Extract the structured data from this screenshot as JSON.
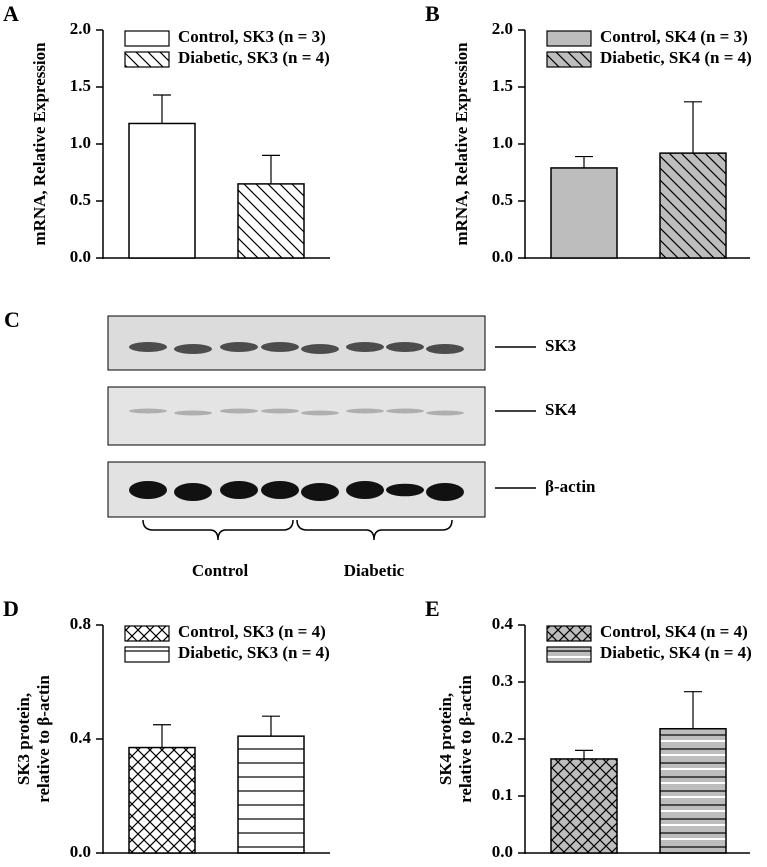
{
  "chart_data": [
    {
      "type": "bar",
      "panel": "A",
      "ylabel": [
        "mRNA, Relative Expression"
      ],
      "ylim": [
        0,
        2
      ],
      "yticks": [
        {
          "value": 0,
          "label": "0.0"
        },
        0.5,
        {
          "value": 1,
          "label": "1.0"
        },
        1.5,
        {
          "value": 2,
          "label": "2.0"
        }
      ],
      "series": [
        {
          "name": "Control, SK3 (n = 3)",
          "color": "#ffffff",
          "hatch": "none",
          "values": [
            1.18
          ],
          "errors": [
            0.25
          ]
        },
        {
          "name": "Diabetic, SK3 (n = 4)",
          "color": "#ffffff",
          "hatch": "diagonal",
          "values": [
            0.65
          ],
          "errors": [
            0.25
          ]
        }
      ]
    },
    {
      "type": "bar",
      "panel": "B",
      "ylabel": [
        "mRNA, Relative Expression"
      ],
      "ylim": [
        0,
        2
      ],
      "yticks": [
        {
          "value": 0,
          "label": "0.0"
        },
        0.5,
        {
          "value": 1,
          "label": "1.0"
        },
        1.5,
        {
          "value": 2,
          "label": "2.0"
        }
      ],
      "series": [
        {
          "name": "Control, SK4 (n = 3)",
          "color": "#bdbdbd",
          "hatch": "none",
          "values": [
            0.79
          ],
          "errors": [
            0.1
          ]
        },
        {
          "name": "Diabetic, SK4 (n = 4)",
          "color": "#bdbdbd",
          "hatch": "diagonal",
          "values": [
            0.92
          ],
          "errors": [
            0.45
          ]
        }
      ]
    },
    {
      "type": "bar",
      "panel": "D",
      "ylabel": [
        "SK3 protein,",
        "relative to β-actin"
      ],
      "ylim": [
        0,
        0.8
      ],
      "yticks": [
        {
          "value": 0,
          "label": "0.0"
        },
        0.4,
        0.8
      ],
      "series": [
        {
          "name": "Control, SK3 (n = 4)",
          "color": "#ffffff",
          "hatch": "cross",
          "values": [
            0.37
          ],
          "errors": [
            0.08
          ]
        },
        {
          "name": "Diabetic, SK3 (n = 4)",
          "color": "#ffffff",
          "hatch": "horizontal",
          "values": [
            0.41
          ],
          "errors": [
            0.07
          ]
        }
      ]
    },
    {
      "type": "bar",
      "panel": "E",
      "ylabel": [
        "SK4 protein,",
        "relative to β-actin"
      ],
      "ylim": [
        0,
        0.4
      ],
      "yticks": [
        {
          "value": 0,
          "label": "0.0"
        },
        0.1,
        0.2,
        0.3,
        0.4
      ],
      "series": [
        {
          "name": "Control, SK4 (n = 4)",
          "color": "#bdbdbd",
          "hatch": "cross",
          "values": [
            0.165
          ],
          "errors": [
            0.015
          ]
        },
        {
          "name": "Diabetic, SK4 (n = 4)",
          "color": "#bdbdbd",
          "hatch": "horizontal",
          "values": [
            0.218
          ],
          "errors": [
            0.065
          ]
        }
      ]
    }
  ],
  "blot": {
    "panel": "C",
    "bands": [
      "SK3",
      "SK4",
      "β-actin"
    ],
    "groups": [
      "Control",
      "Diabetic"
    ]
  }
}
